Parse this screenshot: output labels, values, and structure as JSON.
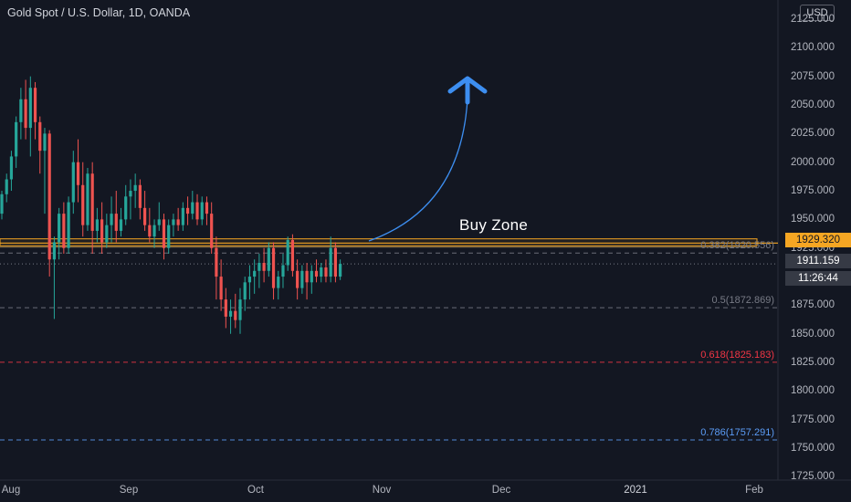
{
  "header": {
    "title": "Gold Spot / U.S. Dollar, 1D, OANDA",
    "currency_button": "USD"
  },
  "price_axis": {
    "ticks": [
      "2125.000",
      "2100.000",
      "2075.000",
      "2050.000",
      "2025.000",
      "2000.000",
      "1975.000",
      "1950.000",
      "1925.000",
      "1900.000",
      "1875.000",
      "1850.000",
      "1825.000",
      "1800.000",
      "1775.000",
      "1750.000",
      "1725.000"
    ]
  },
  "time_axis": {
    "ticks": [
      "Aug",
      "Sep",
      "Oct",
      "Nov",
      "Dec",
      "2021",
      "Feb"
    ]
  },
  "labels": {
    "zone_price": "1929.320",
    "last_price": "1911.159",
    "countdown": "11:26:44",
    "buy_zone": "Buy Zone"
  },
  "fib_levels": [
    {
      "label": "0.382(1920.556)",
      "value": 1920.556,
      "color": "#787b86"
    },
    {
      "label": "0.5(1872.869)",
      "value": 1872.869,
      "color": "#787b86"
    },
    {
      "label": "0.618(1825.183)",
      "value": 1825.183,
      "color": "#f23645"
    },
    {
      "label": "0.786(1757.291)",
      "value": 1757.291,
      "color": "#5b9cf6"
    }
  ],
  "colors": {
    "background": "#131722",
    "up": "#26a69a",
    "down": "#ef5350",
    "zone": "#f5a623",
    "arrow": "#3179f5",
    "zone_label_bg": "#f5a623"
  },
  "chart_data": {
    "type": "candlestick",
    "symbol": "Gold Spot / U.S. Dollar",
    "interval": "1D",
    "ylim": [
      1715,
      2140
    ],
    "buy_zone": [
      1927,
      1933
    ],
    "zone_price": 1929.32,
    "last_price": 1911.159,
    "candles": [
      [
        1955,
        1975,
        1950,
        1972
      ],
      [
        1972,
        1990,
        1965,
        1985
      ],
      [
        1985,
        2010,
        1975,
        2005
      ],
      [
        2005,
        2040,
        1995,
        2035
      ],
      [
        2035,
        2065,
        2020,
        2055
      ],
      [
        2055,
        2072,
        2020,
        2030
      ],
      [
        2030,
        2075,
        2005,
        2065
      ],
      [
        2065,
        2070,
        2020,
        2035
      ],
      [
        2035,
        2040,
        1990,
        2010
      ],
      [
        2010,
        2030,
        1955,
        2025
      ],
      [
        2025,
        2028,
        1900,
        1915
      ],
      [
        1915,
        1935,
        1863,
        1930
      ],
      [
        1930,
        1960,
        1915,
        1955
      ],
      [
        1955,
        1965,
        1920,
        1925
      ],
      [
        1925,
        1970,
        1920,
        1965
      ],
      [
        1965,
        2010,
        1955,
        2000
      ],
      [
        2000,
        2020,
        1965,
        1980
      ],
      [
        1980,
        2000,
        1935,
        1945
      ],
      [
        1945,
        1995,
        1940,
        1990
      ],
      [
        1990,
        2000,
        1920,
        1940
      ],
      [
        1940,
        1960,
        1930,
        1950
      ],
      [
        1950,
        1965,
        1920,
        1930
      ],
      [
        1930,
        1955,
        1925,
        1945
      ],
      [
        1945,
        1970,
        1930,
        1955
      ],
      [
        1955,
        1975,
        1930,
        1940
      ],
      [
        1940,
        1960,
        1935,
        1950
      ],
      [
        1950,
        1980,
        1945,
        1970
      ],
      [
        1970,
        1985,
        1950,
        1975
      ],
      [
        1975,
        1990,
        1960,
        1980
      ],
      [
        1980,
        1985,
        1950,
        1960
      ],
      [
        1960,
        1975,
        1940,
        1945
      ],
      [
        1945,
        1960,
        1930,
        1935
      ],
      [
        1935,
        1950,
        1925,
        1945
      ],
      [
        1945,
        1965,
        1940,
        1950
      ],
      [
        1950,
        1955,
        1915,
        1925
      ],
      [
        1925,
        1950,
        1920,
        1945
      ],
      [
        1945,
        1955,
        1935,
        1950
      ],
      [
        1950,
        1960,
        1940,
        1945
      ],
      [
        1945,
        1965,
        1940,
        1960
      ],
      [
        1960,
        1970,
        1945,
        1955
      ],
      [
        1955,
        1975,
        1950,
        1965
      ],
      [
        1965,
        1972,
        1945,
        1950
      ],
      [
        1950,
        1970,
        1945,
        1965
      ],
      [
        1965,
        1970,
        1945,
        1955
      ],
      [
        1955,
        1965,
        1920,
        1925
      ],
      [
        1925,
        1935,
        1880,
        1900
      ],
      [
        1900,
        1915,
        1870,
        1880
      ],
      [
        1880,
        1890,
        1855,
        1865
      ],
      [
        1865,
        1880,
        1850,
        1870
      ],
      [
        1870,
        1885,
        1855,
        1862
      ],
      [
        1862,
        1890,
        1850,
        1880
      ],
      [
        1880,
        1900,
        1870,
        1895
      ],
      [
        1895,
        1910,
        1880,
        1900
      ],
      [
        1900,
        1915,
        1885,
        1905
      ],
      [
        1905,
        1920,
        1890,
        1912
      ],
      [
        1912,
        1925,
        1895,
        1905
      ],
      [
        1905,
        1930,
        1900,
        1925
      ],
      [
        1925,
        1930,
        1880,
        1890
      ],
      [
        1890,
        1905,
        1880,
        1900
      ],
      [
        1900,
        1920,
        1890,
        1910
      ],
      [
        1910,
        1935,
        1905,
        1932
      ],
      [
        1932,
        1937,
        1900,
        1905
      ],
      [
        1905,
        1915,
        1880,
        1890
      ],
      [
        1890,
        1910,
        1885,
        1905
      ],
      [
        1905,
        1912,
        1880,
        1895
      ],
      [
        1895,
        1910,
        1885,
        1905
      ],
      [
        1905,
        1915,
        1895,
        1900
      ],
      [
        1900,
        1912,
        1895,
        1908
      ],
      [
        1908,
        1915,
        1895,
        1900
      ],
      [
        1900,
        1935,
        1895,
        1925
      ],
      [
        1925,
        1930,
        1895,
        1900
      ],
      [
        1900,
        1915,
        1897,
        1911.159
      ]
    ]
  }
}
